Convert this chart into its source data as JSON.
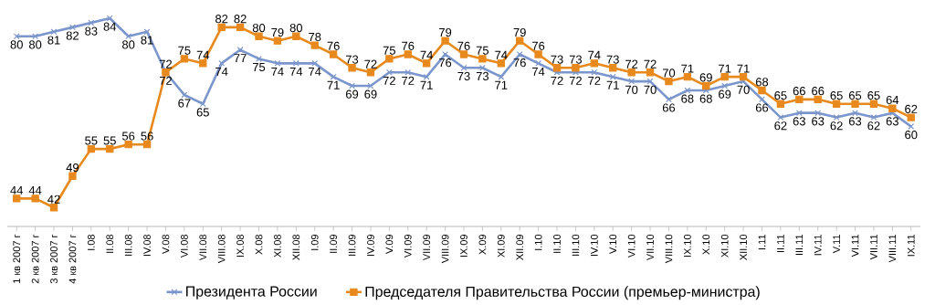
{
  "chart_data": {
    "type": "line",
    "categories": [
      "1 кв 2007 г",
      "2 кв 2007 г",
      "3 кв 2007 г",
      "4 кв 2007 г",
      "I.08",
      "II.08",
      "III.08",
      "IV.08",
      "V.08",
      "VI.08",
      "VII.08",
      "VIII.08",
      "IX.08",
      "X.08",
      "XI.08",
      "XII.08",
      "I.09",
      "II.09",
      "III.09",
      "IV.09",
      "V.09",
      "VI.09",
      "VII.09",
      "VIII.09",
      "IX.09",
      "X.09",
      "XI.09",
      "XII.09",
      "I.10",
      "II.10",
      "III.10",
      "IV.10",
      "V.10",
      "VI.10",
      "VII.10",
      "VIII.10",
      "IX.10",
      "X.10",
      "XI.10",
      "XII.10",
      "I.11",
      "II.11",
      "III.11",
      "IV.11",
      "V.11",
      "VI.11",
      "VII.11",
      "VIII.11",
      "IX.11"
    ],
    "series": [
      {
        "name": "Президента России",
        "color": "#7b96cc",
        "marker": "cross",
        "values": [
          80,
          80,
          81,
          82,
          83,
          84,
          80,
          81,
          72,
          67,
          65,
          74,
          77,
          75,
          74,
          74,
          74,
          71,
          69,
          69,
          72,
          72,
          71,
          76,
          73,
          73,
          71,
          76,
          74,
          72,
          72,
          72,
          71,
          70,
          70,
          66,
          68,
          68,
          69,
          70,
          66,
          62,
          63,
          63,
          62,
          63,
          62,
          63,
          60
        ]
      },
      {
        "name": "Председателя Правительства России (премьер-министра)",
        "color": "#e8891e",
        "marker": "square",
        "values": [
          44,
          44,
          42,
          49,
          55,
          55,
          56,
          56,
          72,
          75,
          74,
          82,
          82,
          80,
          79,
          80,
          78,
          76,
          73,
          72,
          75,
          76,
          74,
          79,
          76,
          75,
          74,
          79,
          76,
          73,
          73,
          74,
          73,
          72,
          72,
          70,
          71,
          69,
          71,
          71,
          68,
          65,
          66,
          66,
          65,
          65,
          65,
          64,
          62
        ]
      }
    ],
    "data_labels": true,
    "legend": "bottom",
    "grid": false,
    "tick_labels": "x"
  }
}
